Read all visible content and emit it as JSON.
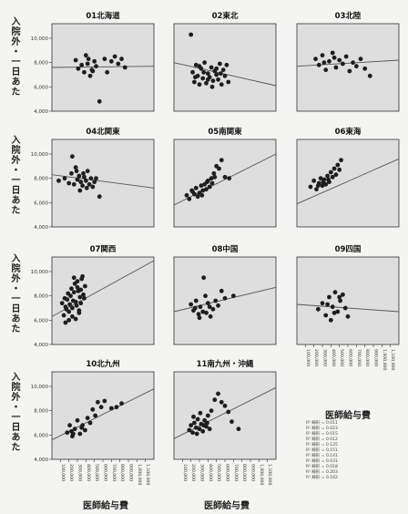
{
  "chart_data": {
    "type": "scatter",
    "x_axis_label": "医師給与費",
    "y_axis_label": "入院外・一日あた",
    "y_ticks": [
      "4,000",
      "6,000",
      "8,000",
      "10,000"
    ],
    "y_tick_values": [
      4000,
      6000,
      8000,
      10000
    ],
    "ylim": [
      4000,
      11200
    ],
    "xlim": [
      0,
      1200
    ],
    "x_ticks": [
      "100,000",
      "200,000",
      "300,000",
      "400,000",
      "500,000",
      "600,000",
      "700,000",
      "800,000",
      "900,000",
      "1,000,000",
      "1,100,000"
    ],
    "x_tick_values": [
      100,
      200,
      300,
      400,
      500,
      600,
      700,
      800,
      900,
      1000,
      1100
    ],
    "legend_lines": [
      "R² 線形 = 0.011",
      "R² 線形 = 0.023",
      "R² 線形 = 0.015",
      "R² 線形 = 0.012",
      "R² 線形 = 0.125",
      "R² 線形 = 0.151",
      "R² 線形 = 0.141",
      "R² 線形 = 0.031",
      "R² 線形 = 0.018",
      "R² 線形 = 0.203",
      "R² 線形 = 0.162"
    ],
    "panels": [
      {
        "title": "01北海道",
        "fit": [
          7600,
          7700
        ],
        "points": [
          [
            280,
            8200
          ],
          [
            310,
            7500
          ],
          [
            350,
            7800
          ],
          [
            380,
            7200
          ],
          [
            400,
            8600
          ],
          [
            420,
            7900
          ],
          [
            450,
            6900
          ],
          [
            470,
            7400
          ],
          [
            500,
            8100
          ],
          [
            520,
            7700
          ],
          [
            560,
            4800
          ],
          [
            620,
            8300
          ],
          [
            650,
            7200
          ],
          [
            700,
            8100
          ],
          [
            740,
            8500
          ],
          [
            780,
            7900
          ],
          [
            820,
            8300
          ],
          [
            860,
            7600
          ],
          [
            480,
            7300
          ],
          [
            430,
            8300
          ]
        ]
      },
      {
        "title": "02東北",
        "fit": [
          8000,
          6100
        ],
        "points": [
          [
            200,
            10300
          ],
          [
            220,
            7200
          ],
          [
            240,
            6400
          ],
          [
            260,
            7800
          ],
          [
            280,
            6900
          ],
          [
            300,
            6200
          ],
          [
            320,
            7500
          ],
          [
            340,
            6700
          ],
          [
            360,
            8000
          ],
          [
            380,
            6300
          ],
          [
            400,
            7100
          ],
          [
            420,
            6800
          ],
          [
            440,
            7600
          ],
          [
            460,
            6500
          ],
          [
            480,
            7300
          ],
          [
            500,
            7000
          ],
          [
            520,
            6600
          ],
          [
            540,
            7900
          ],
          [
            560,
            6200
          ],
          [
            580,
            7400
          ],
          [
            600,
            6900
          ],
          [
            620,
            7800
          ],
          [
            640,
            6400
          ],
          [
            250,
            6800
          ],
          [
            350,
            7200
          ],
          [
            450,
            6000
          ],
          [
            550,
            7100
          ],
          [
            300,
            7700
          ],
          [
            400,
            6600
          ],
          [
            500,
            7500
          ]
        ]
      },
      {
        "title": "03北陸",
        "fit": [
          7700,
          8200
        ],
        "points": [
          [
            220,
            8300
          ],
          [
            260,
            7800
          ],
          [
            300,
            8600
          ],
          [
            340,
            7400
          ],
          [
            380,
            8100
          ],
          [
            420,
            8800
          ],
          [
            460,
            7600
          ],
          [
            500,
            8200
          ],
          [
            540,
            7900
          ],
          [
            580,
            8500
          ],
          [
            620,
            7300
          ],
          [
            660,
            8000
          ],
          [
            700,
            7700
          ],
          [
            750,
            8300
          ],
          [
            800,
            7500
          ],
          [
            860,
            6900
          ],
          [
            320,
            8000
          ],
          [
            440,
            8400
          ]
        ]
      },
      {
        "title": "04北関東",
        "fit": [
          8300,
          7200
        ],
        "points": [
          [
            80,
            7800
          ],
          [
            150,
            8000
          ],
          [
            200,
            7600
          ],
          [
            230,
            8400
          ],
          [
            260,
            7500
          ],
          [
            280,
            8900
          ],
          [
            300,
            7900
          ],
          [
            320,
            8200
          ],
          [
            340,
            7700
          ],
          [
            360,
            7400
          ],
          [
            380,
            8100
          ],
          [
            400,
            7800
          ],
          [
            420,
            8600
          ],
          [
            440,
            7500
          ],
          [
            460,
            8000
          ],
          [
            480,
            7300
          ],
          [
            500,
            7700
          ],
          [
            520,
            8000
          ],
          [
            560,
            6500
          ],
          [
            240,
            9800
          ],
          [
            290,
            8600
          ],
          [
            330,
            7000
          ],
          [
            370,
            8400
          ],
          [
            410,
            7200
          ]
        ]
      },
      {
        "title": "05南関東",
        "fit": [
          5800,
          10000
        ],
        "points": [
          [
            150,
            6600
          ],
          [
            180,
            6300
          ],
          [
            210,
            7000
          ],
          [
            240,
            6700
          ],
          [
            260,
            7200
          ],
          [
            280,
            6500
          ],
          [
            300,
            6800
          ],
          [
            320,
            7400
          ],
          [
            340,
            7000
          ],
          [
            360,
            7500
          ],
          [
            380,
            7100
          ],
          [
            400,
            7800
          ],
          [
            420,
            7300
          ],
          [
            440,
            8000
          ],
          [
            470,
            8400
          ],
          [
            500,
            9000
          ],
          [
            530,
            8800
          ],
          [
            560,
            9500
          ],
          [
            600,
            8100
          ],
          [
            650,
            8000
          ],
          [
            220,
            6900
          ],
          [
            330,
            6600
          ],
          [
            390,
            7700
          ],
          [
            450,
            7600
          ],
          [
            480,
            8100
          ]
        ]
      },
      {
        "title": "06東海",
        "fit": [
          5900,
          9600
        ],
        "points": [
          [
            160,
            7300
          ],
          [
            200,
            7800
          ],
          [
            230,
            7100
          ],
          [
            260,
            7600
          ],
          [
            280,
            8000
          ],
          [
            300,
            7400
          ],
          [
            320,
            7900
          ],
          [
            340,
            7500
          ],
          [
            360,
            8200
          ],
          [
            380,
            7700
          ],
          [
            400,
            8500
          ],
          [
            420,
            8100
          ],
          [
            440,
            8800
          ],
          [
            460,
            8300
          ],
          [
            480,
            9100
          ],
          [
            500,
            8700
          ],
          [
            520,
            9500
          ],
          [
            250,
            7400
          ],
          [
            310,
            7700
          ],
          [
            370,
            7900
          ]
        ]
      },
      {
        "title": "07関西",
        "fit": [
          6300,
          10900
        ],
        "points": [
          [
            120,
            7400
          ],
          [
            150,
            7800
          ],
          [
            170,
            6900
          ],
          [
            190,
            8200
          ],
          [
            210,
            7300
          ],
          [
            230,
            8600
          ],
          [
            250,
            7600
          ],
          [
            270,
            9000
          ],
          [
            290,
            7200
          ],
          [
            310,
            8400
          ],
          [
            330,
            7900
          ],
          [
            350,
            9400
          ],
          [
            370,
            8100
          ],
          [
            390,
            8800
          ],
          [
            140,
            6400
          ],
          [
            160,
            7100
          ],
          [
            180,
            7700
          ],
          [
            200,
            6700
          ],
          [
            220,
            8000
          ],
          [
            240,
            7000
          ],
          [
            260,
            8300
          ],
          [
            280,
            7500
          ],
          [
            300,
            8700
          ],
          [
            320,
            6800
          ],
          [
            340,
            7400
          ],
          [
            360,
            9600
          ],
          [
            380,
            7800
          ],
          [
            200,
            6000
          ],
          [
            240,
            6300
          ],
          [
            280,
            6100
          ],
          [
            320,
            6600
          ],
          [
            160,
            5800
          ],
          [
            260,
            9500
          ],
          [
            300,
            9200
          ],
          [
            340,
            8500
          ]
        ]
      },
      {
        "title": "08中国",
        "fit": [
          6700,
          8700
        ],
        "points": [
          [
            200,
            7300
          ],
          [
            230,
            6800
          ],
          [
            260,
            7600
          ],
          [
            290,
            6500
          ],
          [
            310,
            7100
          ],
          [
            340,
            6700
          ],
          [
            370,
            8000
          ],
          [
            400,
            7400
          ],
          [
            430,
            6300
          ],
          [
            460,
            6900
          ],
          [
            490,
            7600
          ],
          [
            520,
            7200
          ],
          [
            560,
            8400
          ],
          [
            600,
            7800
          ],
          [
            700,
            8000
          ],
          [
            350,
            9500
          ],
          [
            300,
            6200
          ],
          [
            420,
            7100
          ],
          [
            380,
            6600
          ],
          [
            250,
            7000
          ]
        ]
      },
      {
        "title": "09四国",
        "fit": [
          7300,
          6700
        ],
        "points": [
          [
            250,
            6900
          ],
          [
            300,
            7400
          ],
          [
            340,
            6400
          ],
          [
            380,
            7900
          ],
          [
            420,
            7100
          ],
          [
            450,
            8300
          ],
          [
            480,
            6700
          ],
          [
            510,
            7600
          ],
          [
            540,
            8100
          ],
          [
            570,
            7000
          ],
          [
            600,
            6300
          ],
          [
            360,
            7300
          ],
          [
            440,
            6600
          ],
          [
            500,
            7900
          ],
          [
            400,
            6000
          ]
        ]
      },
      {
        "title": "10北九州",
        "fit": [
          5600,
          9800
        ],
        "points": [
          [
            180,
            6200
          ],
          [
            210,
            6800
          ],
          [
            240,
            5900
          ],
          [
            270,
            6500
          ],
          [
            300,
            7200
          ],
          [
            330,
            6100
          ],
          [
            360,
            6800
          ],
          [
            390,
            6400
          ],
          [
            420,
            7400
          ],
          [
            450,
            7000
          ],
          [
            480,
            8100
          ],
          [
            510,
            7600
          ],
          [
            540,
            8700
          ],
          [
            580,
            8300
          ],
          [
            620,
            8800
          ],
          [
            700,
            8200
          ],
          [
            760,
            8300
          ],
          [
            820,
            8600
          ],
          [
            250,
            6100
          ],
          [
            350,
            6600
          ],
          [
            230,
            6300
          ]
        ]
      },
      {
        "title": "11南九州・沖縄",
        "fit": [
          5700,
          9900
        ],
        "points": [
          [
            180,
            6400
          ],
          [
            200,
            6800
          ],
          [
            220,
            6200
          ],
          [
            240,
            7000
          ],
          [
            260,
            6600
          ],
          [
            280,
            7300
          ],
          [
            300,
            6500
          ],
          [
            320,
            6900
          ],
          [
            340,
            6300
          ],
          [
            360,
            7200
          ],
          [
            380,
            6700
          ],
          [
            400,
            7600
          ],
          [
            440,
            8000
          ],
          [
            480,
            8900
          ],
          [
            520,
            9400
          ],
          [
            560,
            8700
          ],
          [
            600,
            8400
          ],
          [
            640,
            7900
          ],
          [
            680,
            7100
          ],
          [
            230,
            7500
          ],
          [
            270,
            6100
          ],
          [
            310,
            7800
          ],
          [
            350,
            6800
          ],
          [
            390,
            7000
          ],
          [
            420,
            6500
          ],
          [
            760,
            6500
          ]
        ]
      }
    ]
  }
}
